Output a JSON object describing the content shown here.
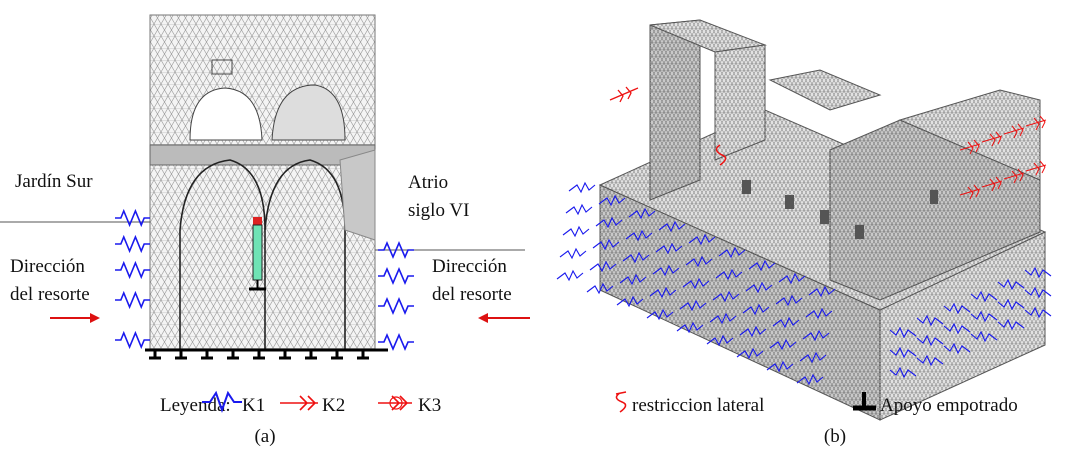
{
  "panel_a": {
    "left_label": "Jardín Sur",
    "right_label_lines": [
      "Atrio",
      "siglo VI"
    ],
    "left_direction_lines": [
      "Dirección",
      "del resorte"
    ],
    "right_direction_lines": [
      "Dirección",
      "del resorte"
    ],
    "caption": "(a)"
  },
  "panel_b": {
    "caption": "(b)"
  },
  "legend": {
    "title": "Leyenda:",
    "items": [
      {
        "label": "K1"
      },
      {
        "label": "K2"
      },
      {
        "label": "K3"
      },
      {
        "label": "restriccion lateral"
      },
      {
        "label": "Apoyo empotrado"
      }
    ]
  }
}
